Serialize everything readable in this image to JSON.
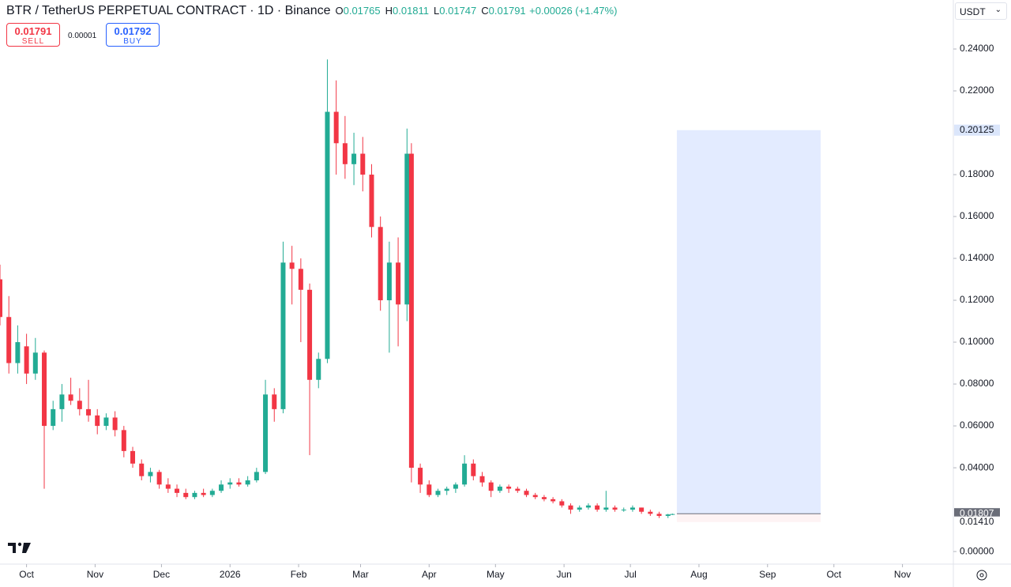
{
  "header": {
    "symbol": "BTR / TetherUS PERPETUAL CONTRACT · 1D · Binance",
    "ohlc": [
      {
        "label": "O",
        "value": "0.01765"
      },
      {
        "label": "H",
        "value": "0.01811"
      },
      {
        "label": "L",
        "value": "0.01747"
      },
      {
        "label": "C",
        "value": "0.01791"
      }
    ],
    "change": "+0.00026 (+1.47%)"
  },
  "trade": {
    "sell_price": "0.01791",
    "sell_label": "SELL",
    "spread": "0.00001",
    "buy_price": "0.01792",
    "buy_label": "BUY"
  },
  "currency": "USDT",
  "chart_data": {
    "type": "candlestick",
    "up_color": "#22ab94",
    "down_color": "#f23645",
    "grid": false,
    "x": [
      0,
      4,
      8,
      12,
      16,
      20,
      24,
      28,
      32,
      36,
      40,
      44,
      48,
      52,
      56,
      60,
      64,
      68,
      72,
      76,
      80,
      84,
      88,
      92,
      96,
      100,
      104,
      108,
      112,
      116,
      120,
      124,
      128,
      132,
      136,
      140,
      144,
      148,
      152,
      156,
      160,
      164,
      168,
      172,
      176,
      180,
      184,
      186,
      190,
      194,
      198,
      202,
      206,
      210,
      214,
      218,
      222,
      226,
      230,
      234,
      238,
      242,
      246,
      250,
      254,
      258,
      262,
      266,
      270,
      274,
      278,
      282,
      286,
      290,
      294,
      298,
      302,
      304
    ],
    "open": [
      0.13,
      0.112,
      0.09,
      0.098,
      0.085,
      0.095,
      0.06,
      0.068,
      0.075,
      0.072,
      0.068,
      0.065,
      0.06,
      0.064,
      0.058,
      0.048,
      0.042,
      0.036,
      0.038,
      0.032,
      0.03,
      0.028,
      0.026,
      0.028,
      0.027,
      0.029,
      0.032,
      0.033,
      0.032,
      0.034,
      0.038,
      0.075,
      0.068,
      0.138,
      0.135,
      0.125,
      0.082,
      0.092,
      0.21,
      0.195,
      0.185,
      0.19,
      0.18,
      0.155,
      0.12,
      0.138,
      0.118,
      0.19,
      0.04,
      0.032,
      0.027,
      0.029,
      0.03,
      0.032,
      0.042,
      0.036,
      0.033,
      0.029,
      0.031,
      0.03,
      0.029,
      0.027,
      0.026,
      0.025,
      0.024,
      0.022,
      0.02,
      0.021,
      0.022,
      0.02,
      0.021,
      0.02,
      0.02,
      0.021,
      0.019,
      0.018,
      0.017,
      0.01765
    ],
    "high": [
      0.137,
      0.122,
      0.108,
      0.104,
      0.102,
      0.096,
      0.072,
      0.08,
      0.083,
      0.078,
      0.082,
      0.068,
      0.066,
      0.067,
      0.06,
      0.05,
      0.044,
      0.04,
      0.039,
      0.035,
      0.032,
      0.03,
      0.029,
      0.03,
      0.03,
      0.034,
      0.035,
      0.035,
      0.036,
      0.04,
      0.082,
      0.078,
      0.148,
      0.146,
      0.14,
      0.128,
      0.095,
      0.235,
      0.225,
      0.208,
      0.2,
      0.198,
      0.185,
      0.16,
      0.148,
      0.15,
      0.202,
      0.195,
      0.042,
      0.034,
      0.03,
      0.031,
      0.033,
      0.046,
      0.044,
      0.038,
      0.034,
      0.032,
      0.032,
      0.031,
      0.03,
      0.028,
      0.027,
      0.026,
      0.025,
      0.023,
      0.022,
      0.023,
      0.023,
      0.029,
      0.022,
      0.021,
      0.022,
      0.021,
      0.02,
      0.019,
      0.018,
      0.01811
    ],
    "low": [
      0.108,
      0.085,
      0.085,
      0.08,
      0.082,
      0.03,
      0.058,
      0.062,
      0.07,
      0.065,
      0.062,
      0.056,
      0.058,
      0.055,
      0.045,
      0.04,
      0.034,
      0.033,
      0.03,
      0.028,
      0.026,
      0.025,
      0.025,
      0.026,
      0.026,
      0.028,
      0.03,
      0.031,
      0.031,
      0.033,
      0.037,
      0.062,
      0.066,
      0.118,
      0.1,
      0.046,
      0.078,
      0.09,
      0.18,
      0.178,
      0.175,
      0.172,
      0.15,
      0.115,
      0.095,
      0.098,
      0.11,
      0.033,
      0.028,
      0.026,
      0.026,
      0.027,
      0.028,
      0.031,
      0.034,
      0.031,
      0.026,
      0.028,
      0.028,
      0.028,
      0.026,
      0.025,
      0.024,
      0.023,
      0.021,
      0.018,
      0.019,
      0.02,
      0.019,
      0.019,
      0.019,
      0.019,
      0.019,
      0.018,
      0.017,
      0.016,
      0.016,
      0.01747
    ],
    "close": [
      0.112,
      0.09,
      0.1,
      0.085,
      0.095,
      0.06,
      0.068,
      0.075,
      0.072,
      0.068,
      0.065,
      0.06,
      0.064,
      0.058,
      0.048,
      0.042,
      0.036,
      0.038,
      0.032,
      0.03,
      0.028,
      0.026,
      0.028,
      0.027,
      0.029,
      0.032,
      0.033,
      0.032,
      0.034,
      0.038,
      0.075,
      0.068,
      0.138,
      0.135,
      0.125,
      0.082,
      0.092,
      0.21,
      0.195,
      0.185,
      0.19,
      0.18,
      0.155,
      0.12,
      0.138,
      0.118,
      0.19,
      0.04,
      0.032,
      0.027,
      0.029,
      0.03,
      0.032,
      0.042,
      0.036,
      0.033,
      0.029,
      0.031,
      0.03,
      0.029,
      0.027,
      0.026,
      0.025,
      0.024,
      0.022,
      0.02,
      0.021,
      0.022,
      0.02,
      0.021,
      0.02,
      0.02,
      0.021,
      0.019,
      0.018,
      0.017,
      0.0177,
      0.01791
    ],
    "xlim": [
      0,
      431
    ],
    "xticks": [
      {
        "value": 12,
        "label": "Oct"
      },
      {
        "value": 43,
        "label": "Nov"
      },
      {
        "value": 73,
        "label": "Dec"
      },
      {
        "value": 104,
        "label": "2026"
      },
      {
        "value": 135,
        "label": "Feb"
      },
      {
        "value": 163,
        "label": "Mar"
      },
      {
        "value": 194,
        "label": "Apr"
      },
      {
        "value": 224,
        "label": "May"
      },
      {
        "value": 255,
        "label": "Jun"
      },
      {
        "value": 285,
        "label": "Jul"
      },
      {
        "value": 316,
        "label": "Aug"
      },
      {
        "value": 347,
        "label": "Sep"
      },
      {
        "value": 377,
        "label": "Oct"
      },
      {
        "value": 408,
        "label": "Nov"
      }
    ],
    "ylim": [
      -0.006,
      0.2634
    ],
    "yticks": [
      {
        "value": 0.24,
        "label": "0.24000"
      },
      {
        "value": 0.22,
        "label": "0.22000"
      },
      {
        "value": 0.18,
        "label": "0.18000"
      },
      {
        "value": 0.16,
        "label": "0.16000"
      },
      {
        "value": 0.14,
        "label": "0.14000"
      },
      {
        "value": 0.12,
        "label": "0.12000"
      },
      {
        "value": 0.1,
        "label": "0.10000"
      },
      {
        "value": 0.08,
        "label": "0.08000"
      },
      {
        "value": 0.06,
        "label": "0.06000"
      },
      {
        "value": 0.04,
        "label": "0.04000"
      },
      {
        "value": 0,
        "label": "0.00000"
      }
    ],
    "position": {
      "start": 306,
      "end": 371,
      "target": {
        "value": 0.20125,
        "label": "0.20125"
      },
      "entry": {
        "value": 0.01807,
        "label": "0.01807"
      },
      "stop": {
        "value": 0.0141,
        "label": "0.01410"
      }
    }
  }
}
